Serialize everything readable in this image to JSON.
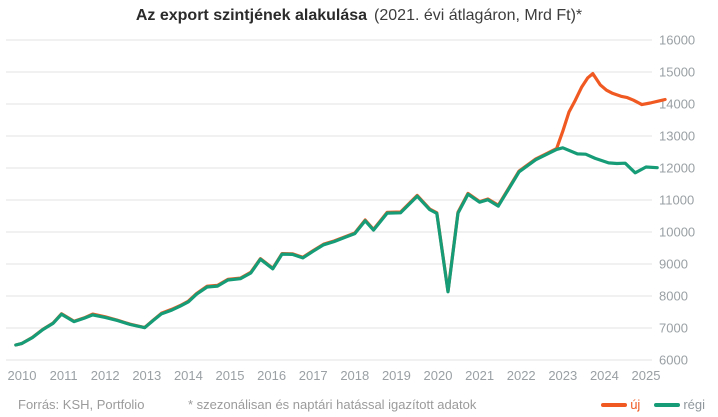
{
  "title": {
    "main": "Az export szintjének alakulása",
    "sub": "(2021. évi átlagáron, Mrd Ft)*"
  },
  "footer": {
    "source": "Forrás: KSH, Portfolio",
    "note": "* szezonálisan és naptári hatással igazított adatok"
  },
  "legend": {
    "items": [
      {
        "label": "új",
        "color": "#f05a22",
        "label_color": "#f05a22"
      },
      {
        "label": "régi",
        "color": "#169c77",
        "label_color": "#90989d"
      }
    ]
  },
  "colors": {
    "grid": "#e3e3e3",
    "axis_text": "#9aa0a4",
    "background": "#ffffff"
  },
  "chart_data": {
    "type": "line",
    "title": "Az export szintjének alakulása (2021. évi átlagáron, Mrd Ft)*",
    "xlabel": "",
    "ylabel": "Mrd Ft (2021. évi átlagáron)",
    "grid": true,
    "legend_position": "bottom-right",
    "x_axis": {
      "ticks": [
        2010,
        2011,
        2012,
        2013,
        2014,
        2015,
        2016,
        2017,
        2018,
        2019,
        2020,
        2021,
        2022,
        2023,
        2024,
        2025
      ],
      "range": [
        2009.8,
        2025.7
      ]
    },
    "y_axis": {
      "ticks": [
        16000,
        15000,
        14000,
        13000,
        12000,
        11000,
        10000,
        9000,
        8000,
        7000,
        6000
      ],
      "range": [
        6000,
        16000
      ]
    },
    "series": [
      {
        "name": "új",
        "color": "#f05a22",
        "points": [
          [
            2009.85,
            6470
          ],
          [
            2010.0,
            6520
          ],
          [
            2010.25,
            6705
          ],
          [
            2010.5,
            6955
          ],
          [
            2010.75,
            7155
          ],
          [
            2010.95,
            7445
          ],
          [
            2011.25,
            7210
          ],
          [
            2011.5,
            7320
          ],
          [
            2011.7,
            7435
          ],
          [
            2012.0,
            7350
          ],
          [
            2012.3,
            7240
          ],
          [
            2012.6,
            7120
          ],
          [
            2012.95,
            7015
          ],
          [
            2013.15,
            7240
          ],
          [
            2013.35,
            7460
          ],
          [
            2013.6,
            7585
          ],
          [
            2013.8,
            7700
          ],
          [
            2014.0,
            7840
          ],
          [
            2014.2,
            8080
          ],
          [
            2014.45,
            8305
          ],
          [
            2014.7,
            8330
          ],
          [
            2014.95,
            8520
          ],
          [
            2015.25,
            8560
          ],
          [
            2015.5,
            8740
          ],
          [
            2015.73,
            9165
          ],
          [
            2016.03,
            8865
          ],
          [
            2016.25,
            9325
          ],
          [
            2016.5,
            9320
          ],
          [
            2016.75,
            9210
          ],
          [
            2017.0,
            9420
          ],
          [
            2017.25,
            9620
          ],
          [
            2017.5,
            9720
          ],
          [
            2017.8,
            9870
          ],
          [
            2018.0,
            9970
          ],
          [
            2018.25,
            10375
          ],
          [
            2018.45,
            10080
          ],
          [
            2018.78,
            10615
          ],
          [
            2019.1,
            10625
          ],
          [
            2019.5,
            11145
          ],
          [
            2019.8,
            10720
          ],
          [
            2019.97,
            10600
          ],
          [
            2020.24,
            8150
          ],
          [
            2020.48,
            10615
          ],
          [
            2020.72,
            11205
          ],
          [
            2021.0,
            10950
          ],
          [
            2021.2,
            11030
          ],
          [
            2021.45,
            10835
          ],
          [
            2021.95,
            11905
          ],
          [
            2022.35,
            12285
          ],
          [
            2022.6,
            12445
          ],
          [
            2022.85,
            12605
          ],
          [
            2023.0,
            13150
          ],
          [
            2023.15,
            13750
          ],
          [
            2023.3,
            14120
          ],
          [
            2023.45,
            14520
          ],
          [
            2023.6,
            14820
          ],
          [
            2023.72,
            14950
          ],
          [
            2023.9,
            14600
          ],
          [
            2024.05,
            14430
          ],
          [
            2024.2,
            14330
          ],
          [
            2024.4,
            14240
          ],
          [
            2024.55,
            14200
          ],
          [
            2024.7,
            14120
          ],
          [
            2024.9,
            13980
          ],
          [
            2025.1,
            14030
          ],
          [
            2025.3,
            14090
          ],
          [
            2025.46,
            14140
          ]
        ]
      },
      {
        "name": "régi",
        "color": "#169c77",
        "points": [
          [
            2009.85,
            6470
          ],
          [
            2010.0,
            6520
          ],
          [
            2010.25,
            6700
          ],
          [
            2010.5,
            6950
          ],
          [
            2010.75,
            7150
          ],
          [
            2010.95,
            7430
          ],
          [
            2011.25,
            7200
          ],
          [
            2011.5,
            7310
          ],
          [
            2011.7,
            7410
          ],
          [
            2012.0,
            7330
          ],
          [
            2012.3,
            7230
          ],
          [
            2012.6,
            7110
          ],
          [
            2012.95,
            7010
          ],
          [
            2013.15,
            7230
          ],
          [
            2013.35,
            7440
          ],
          [
            2013.6,
            7560
          ],
          [
            2013.8,
            7680
          ],
          [
            2014.0,
            7820
          ],
          [
            2014.2,
            8060
          ],
          [
            2014.45,
            8280
          ],
          [
            2014.7,
            8310
          ],
          [
            2014.95,
            8500
          ],
          [
            2015.25,
            8540
          ],
          [
            2015.5,
            8720
          ],
          [
            2015.73,
            9150
          ],
          [
            2016.03,
            8850
          ],
          [
            2016.25,
            9310
          ],
          [
            2016.5,
            9300
          ],
          [
            2016.75,
            9190
          ],
          [
            2017.0,
            9400
          ],
          [
            2017.25,
            9600
          ],
          [
            2017.5,
            9700
          ],
          [
            2017.8,
            9850
          ],
          [
            2018.0,
            9950
          ],
          [
            2018.25,
            10350
          ],
          [
            2018.45,
            10060
          ],
          [
            2018.78,
            10590
          ],
          [
            2019.1,
            10600
          ],
          [
            2019.5,
            11120
          ],
          [
            2019.8,
            10700
          ],
          [
            2019.97,
            10580
          ],
          [
            2020.24,
            8130
          ],
          [
            2020.48,
            10590
          ],
          [
            2020.72,
            11180
          ],
          [
            2021.0,
            10930
          ],
          [
            2021.2,
            11010
          ],
          [
            2021.45,
            10810
          ],
          [
            2021.95,
            11880
          ],
          [
            2022.35,
            12260
          ],
          [
            2022.6,
            12420
          ],
          [
            2022.85,
            12580
          ],
          [
            2023.0,
            12630
          ],
          [
            2023.35,
            12440
          ],
          [
            2023.55,
            12430
          ],
          [
            2023.78,
            12300
          ],
          [
            2024.1,
            12160
          ],
          [
            2024.3,
            12140
          ],
          [
            2024.5,
            12150
          ],
          [
            2024.74,
            11850
          ],
          [
            2025.0,
            12030
          ],
          [
            2025.27,
            12010
          ]
        ]
      }
    ]
  }
}
